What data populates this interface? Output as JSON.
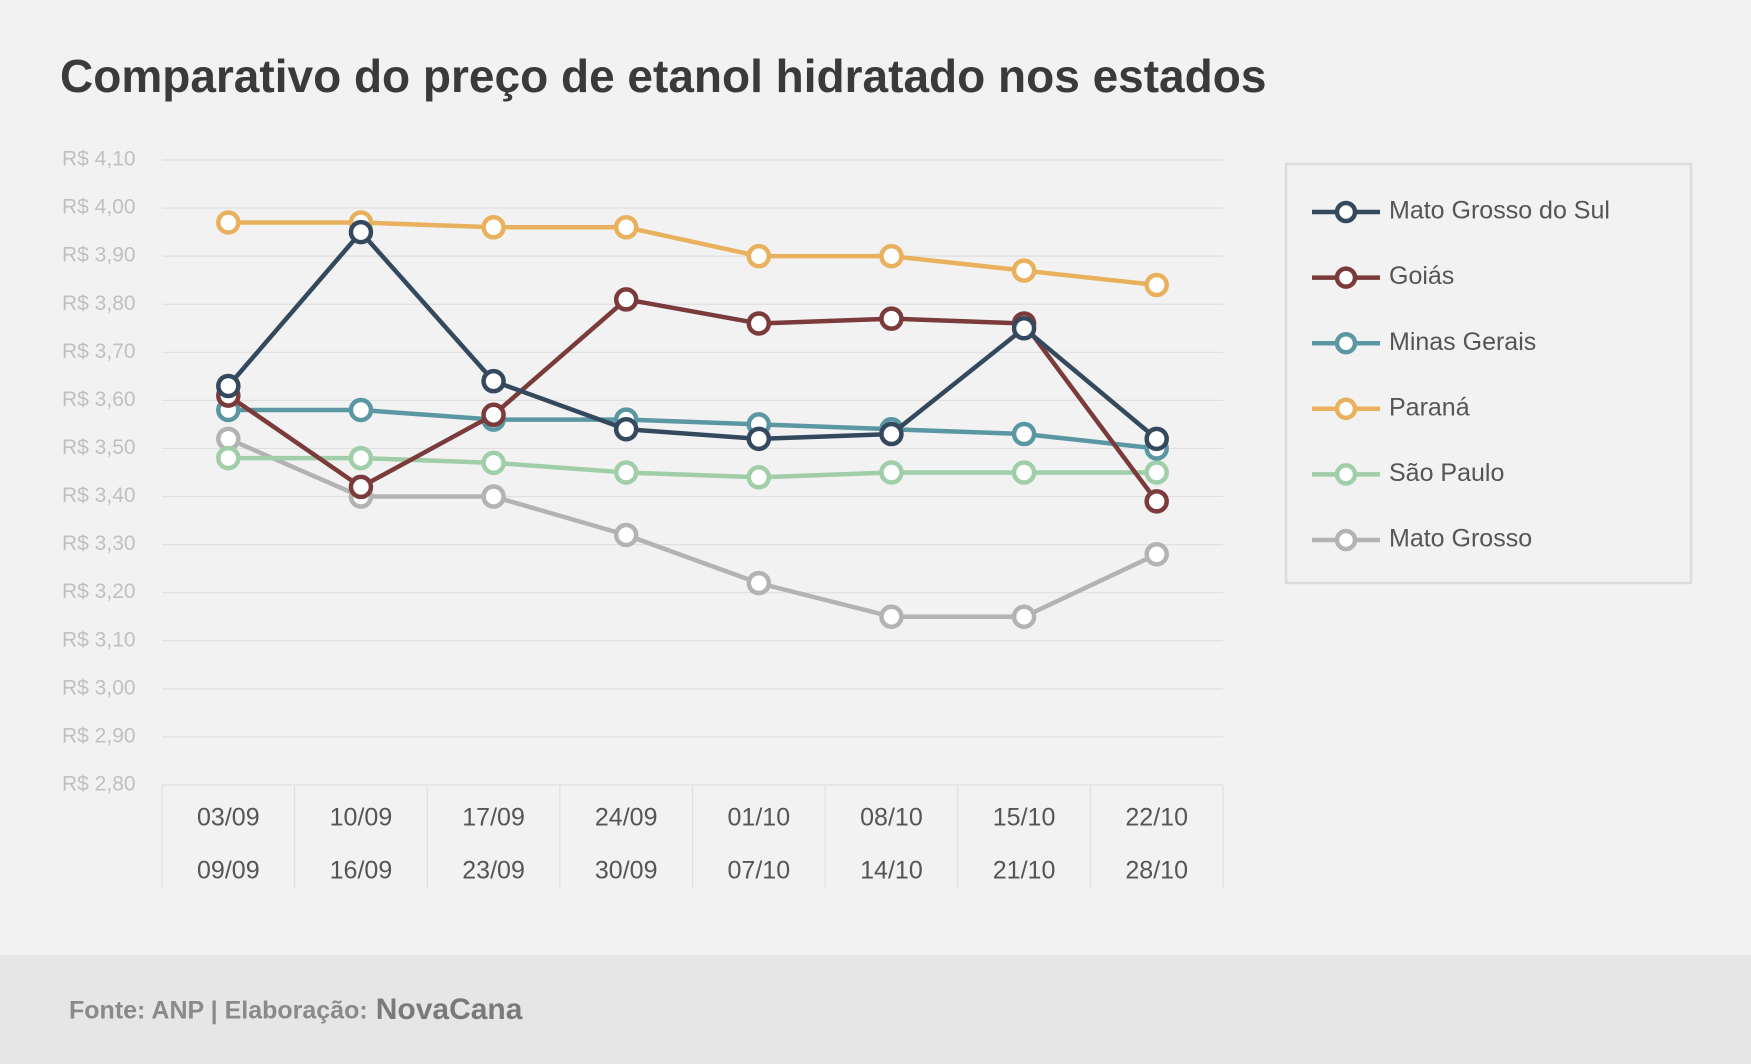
{
  "chart_data": {
    "type": "line",
    "title": "Comparativo do preço de etanol hidratado nos estados",
    "categories": [
      [
        "03/09",
        "09/09"
      ],
      [
        "10/09",
        "16/09"
      ],
      [
        "17/09",
        "23/09"
      ],
      [
        "24/09",
        "30/09"
      ],
      [
        "01/10",
        "07/10"
      ],
      [
        "08/10",
        "14/10"
      ],
      [
        "15/10",
        "21/10"
      ],
      [
        "22/10",
        "28/10"
      ]
    ],
    "series": [
      {
        "name": "Mato Grosso do Sul",
        "color": "#34495e",
        "values": [
          3.63,
          3.95,
          3.64,
          3.54,
          3.52,
          3.53,
          3.75,
          3.52
        ]
      },
      {
        "name": "Goiás",
        "color": "#7b3b3b",
        "values": [
          3.61,
          3.42,
          3.57,
          3.81,
          3.76,
          3.77,
          3.76,
          3.39
        ]
      },
      {
        "name": "Minas Gerais",
        "color": "#5b97a3",
        "values": [
          3.58,
          3.58,
          3.56,
          3.56,
          3.55,
          3.54,
          3.53,
          3.5
        ]
      },
      {
        "name": "Paraná",
        "color": "#e9b15e",
        "values": [
          3.97,
          3.97,
          3.96,
          3.96,
          3.9,
          3.9,
          3.87,
          3.84
        ]
      },
      {
        "name": "São Paulo",
        "color": "#9fcea8",
        "values": [
          3.48,
          3.48,
          3.47,
          3.45,
          3.44,
          3.45,
          3.45,
          3.45
        ]
      },
      {
        "name": "Mato Grosso",
        "color": "#b3b3b3",
        "values": [
          3.52,
          3.4,
          3.4,
          3.32,
          3.22,
          3.15,
          3.15,
          3.28
        ]
      }
    ],
    "ylim": [
      2.8,
      4.1
    ],
    "yticks": [
      {
        "value": 2.8,
        "label": "R$ 2,80"
      },
      {
        "value": 2.9,
        "label": "R$ 2,90"
      },
      {
        "value": 3.0,
        "label": "R$ 3,00"
      },
      {
        "value": 3.1,
        "label": "R$ 3,10"
      },
      {
        "value": 3.2,
        "label": "R$ 3,20"
      },
      {
        "value": 3.3,
        "label": "R$ 3,30"
      },
      {
        "value": 3.4,
        "label": "R$ 3,40"
      },
      {
        "value": 3.5,
        "label": "R$ 3,50"
      },
      {
        "value": 3.6,
        "label": "R$ 3,60"
      },
      {
        "value": 3.7,
        "label": "R$ 3,70"
      },
      {
        "value": 3.8,
        "label": "R$ 3,80"
      },
      {
        "value": 3.9,
        "label": "R$ 3,90"
      },
      {
        "value": 4.0,
        "label": "R$ 4,00"
      },
      {
        "value": 4.1,
        "label": "R$ 4,10"
      }
    ],
    "grid": true,
    "legend": "right",
    "source": "Fonte: ANP | Elaboração:",
    "brand": "NovaCana"
  }
}
